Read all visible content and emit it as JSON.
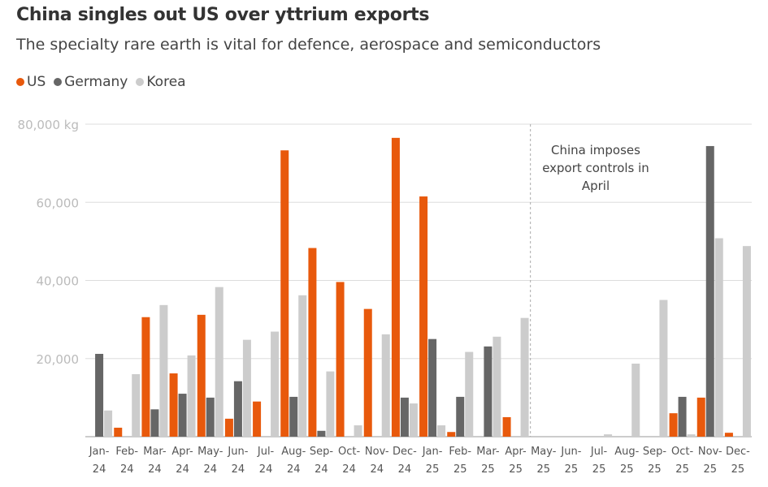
{
  "chart_data": {
    "type": "bar",
    "title": "China singles out US over yttrium exports",
    "subtitle": "The specialty rare earth is vital for defence, aerospace and semiconductors",
    "categories": [
      "Jan-24",
      "Feb-24",
      "Mar-24",
      "Apr-24",
      "May-24",
      "Jun-24",
      "Jul-24",
      "Aug-24",
      "Sep-24",
      "Oct-24",
      "Nov-24",
      "Dec-24",
      "Jan-25",
      "Feb-25",
      "Mar-25",
      "Apr-25",
      "May-25",
      "Jun-25",
      "Jul-25",
      "Aug-25",
      "Sep-25",
      "Oct-25",
      "Nov-25",
      "Dec-25"
    ],
    "series": [
      {
        "name": "US",
        "color": "#e8590c",
        "values": [
          0,
          2300,
          30600,
          16200,
          31200,
          4600,
          9000,
          73300,
          48300,
          39600,
          32700,
          76500,
          61500,
          1200,
          0,
          5000,
          0,
          0,
          0,
          0,
          0,
          6000,
          10000,
          1000
        ]
      },
      {
        "name": "Germany",
        "color": "#666666",
        "values": [
          21200,
          0,
          7000,
          11000,
          10000,
          14200,
          0,
          10200,
          1500,
          0,
          0,
          10000,
          25000,
          10200,
          23100,
          0,
          0,
          0,
          0,
          0,
          0,
          10200,
          74400,
          0
        ]
      },
      {
        "name": "Korea",
        "color": "#cccccc",
        "values": [
          6700,
          16000,
          33700,
          20800,
          38300,
          24800,
          26900,
          36200,
          16700,
          2900,
          26200,
          8500,
          2900,
          21700,
          25600,
          30400,
          0,
          0,
          600,
          18700,
          35000,
          600,
          50800,
          48800
        ]
      }
    ],
    "ylim": [
      0,
      80000
    ],
    "yticks": [
      {
        "v": 80000,
        "label": "80,000 kg"
      },
      {
        "v": 60000,
        "label": "60,000"
      },
      {
        "v": 40000,
        "label": "40,000"
      },
      {
        "v": 20000,
        "label": "20,000"
      }
    ],
    "grid": true,
    "legend_placement": "top-left",
    "annotation": {
      "after_category": "Apr-25",
      "lines": [
        "China imposes",
        "export controls in",
        "April"
      ]
    }
  }
}
